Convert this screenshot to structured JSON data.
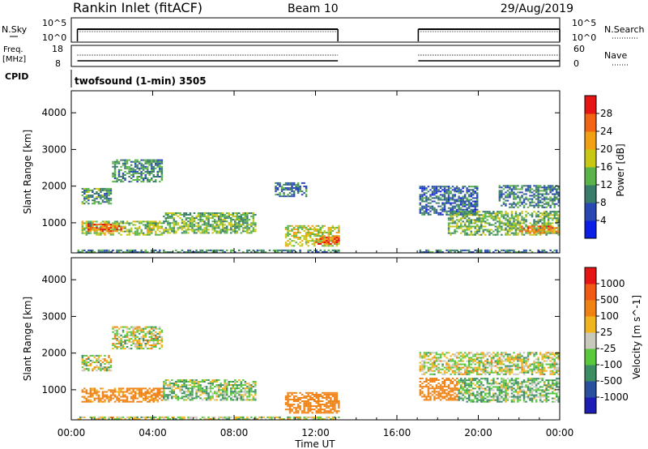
{
  "header": {
    "title": "Rankin Inlet (fitACF)",
    "beam": "Beam 10",
    "date": "29/Aug/2019"
  },
  "aux_labels": {
    "nsky": "N.Sky",
    "nsky_hi": "10^5",
    "nsky_lo": "10^0",
    "nsearch": "N.Search",
    "nsearch_hi": "10^5",
    "nsearch_lo": "10^0",
    "freq": "Freq.",
    "freq_unit": "[MHz]",
    "freq_hi": "18",
    "freq_lo": "8",
    "nave": "Nave",
    "nave_hi": "60",
    "nave_lo": "0",
    "cpid": "CPID",
    "cpid_value": "twofsound (1-min) 3505"
  },
  "axes": {
    "xlabel": "Time UT",
    "xticks": [
      "00:00",
      "04:00",
      "08:00",
      "12:00",
      "16:00",
      "20:00",
      "00:00"
    ],
    "ylabel": "Slant Range [km]",
    "yticks": [
      "1000",
      "2000",
      "3000",
      "4000"
    ]
  },
  "power_colorbar": {
    "label": "Power [dB]",
    "ticks": [
      "4",
      "8",
      "12",
      "16",
      "20",
      "24",
      "28"
    ],
    "colors": [
      "#0a1ee6",
      "#2a48b4",
      "#3a7c6a",
      "#5ab44a",
      "#c8c814",
      "#f0a014",
      "#f06414",
      "#e61414"
    ]
  },
  "velocity_colorbar": {
    "label": "Velocity [m s^-1]",
    "ticks": [
      "1000",
      "500",
      "100",
      "25",
      "-25",
      "-100",
      "-500",
      "-1000"
    ],
    "colors": [
      "#1e1eb4",
      "#2a50a0",
      "#3c8c64",
      "#5ac83c",
      "#c8c8bc",
      "#f0b41e",
      "#f08214",
      "#f05a14",
      "#e61414"
    ]
  },
  "chart_data": [
    {
      "type": "heatmap",
      "title": "Power",
      "xlabel": "Time UT",
      "ylabel": "Slant Range [km]",
      "xlim_hours": [
        0,
        24
      ],
      "ylim_km": [
        180,
        4600
      ],
      "data_gap_hours": [
        13.15,
        17.05
      ],
      "color_label": "Power [dB]",
      "echo_bands": [
        {
          "t0": 0.3,
          "t1": 13.1,
          "r0": 180,
          "r1": 260,
          "value": 10
        },
        {
          "t0": 0.5,
          "t1": 4.5,
          "r0": 650,
          "r1": 1050,
          "value": 16
        },
        {
          "t0": 0.8,
          "t1": 2.5,
          "r0": 750,
          "r1": 950,
          "value": 26
        },
        {
          "t0": 0.5,
          "t1": 2.0,
          "r0": 1500,
          "r1": 1950,
          "value": 12
        },
        {
          "t0": 2.0,
          "t1": 4.5,
          "r0": 2100,
          "r1": 2700,
          "value": 11
        },
        {
          "t0": 4.5,
          "t1": 9.0,
          "r0": 700,
          "r1": 1250,
          "value": 14
        },
        {
          "t0": 10.5,
          "t1": 13.1,
          "r0": 350,
          "r1": 900,
          "value": 18
        },
        {
          "t0": 12.0,
          "t1": 13.1,
          "r0": 400,
          "r1": 600,
          "value": 26
        },
        {
          "t0": 10.0,
          "t1": 11.5,
          "r0": 1700,
          "r1": 2100,
          "value": 9
        },
        {
          "t0": 17.1,
          "t1": 24.0,
          "r0": 180,
          "r1": 260,
          "value": 9
        },
        {
          "t0": 17.1,
          "t1": 20.0,
          "r0": 1200,
          "r1": 2000,
          "value": 8
        },
        {
          "t0": 18.5,
          "t1": 24.0,
          "r0": 650,
          "r1": 1300,
          "value": 14
        },
        {
          "t0": 22.0,
          "t1": 24.0,
          "r0": 700,
          "r1": 900,
          "value": 24
        },
        {
          "t0": 21.0,
          "t1": 24.0,
          "r0": 1400,
          "r1": 2000,
          "value": 10
        }
      ]
    },
    {
      "type": "heatmap",
      "title": "Velocity",
      "xlabel": "Time UT",
      "ylabel": "Slant Range [km]",
      "xlim_hours": [
        0,
        24
      ],
      "ylim_km": [
        180,
        4600
      ],
      "data_gap_hours": [
        13.15,
        17.05
      ],
      "color_label": "Velocity [m s^-1]",
      "echo_bands": [
        {
          "t0": 0.3,
          "t1": 13.1,
          "r0": 180,
          "r1": 260,
          "value": 0
        },
        {
          "t0": 0.5,
          "t1": 4.5,
          "r0": 650,
          "r1": 1050,
          "value": -200
        },
        {
          "t0": 0.5,
          "t1": 2.0,
          "r0": 1500,
          "r1": 1950,
          "value": 0
        },
        {
          "t0": 2.0,
          "t1": 4.5,
          "r0": 2100,
          "r1": 2700,
          "value": 0
        },
        {
          "t0": 4.5,
          "t1": 9.0,
          "r0": 700,
          "r1": 1250,
          "value": 60
        },
        {
          "t0": 10.5,
          "t1": 13.1,
          "r0": 350,
          "r1": 900,
          "value": -300
        },
        {
          "t0": 17.1,
          "t1": 19.0,
          "r0": 700,
          "r1": 1300,
          "value": -300
        },
        {
          "t0": 17.1,
          "t1": 24.0,
          "r0": 1400,
          "r1": 2000,
          "value": 0
        },
        {
          "t0": 19.0,
          "t1": 24.0,
          "r0": 650,
          "r1": 1300,
          "value": 80
        }
      ]
    },
    {
      "type": "line",
      "title": "N.Sky",
      "series": [
        {
          "name": "N.Sky",
          "x_hours": [
            0.3,
            13.1,
            17.05,
            24.0
          ],
          "segments": [
            [
              0.3,
              13.1
            ],
            [
              17.05,
              24.0
            ]
          ]
        },
        {
          "name": "N.Search",
          "x_hours": [
            0.3,
            13.1,
            17.05,
            24.0
          ],
          "segments": [
            [
              0.3,
              13.1
            ],
            [
              17.05,
              24.0
            ]
          ]
        }
      ]
    },
    {
      "type": "line",
      "title": "Freq.",
      "ylim": [
        8,
        18
      ],
      "series": [
        {
          "name": "Freq.",
          "value": 10.5,
          "segments": [
            [
              0.3,
              13.1
            ],
            [
              17.05,
              24.0
            ]
          ]
        },
        {
          "name": "Nave",
          "value": 28,
          "ylim": [
            0,
            60
          ],
          "segments": [
            [
              0.3,
              13.1
            ],
            [
              17.05,
              24.0
            ]
          ]
        }
      ]
    }
  ]
}
